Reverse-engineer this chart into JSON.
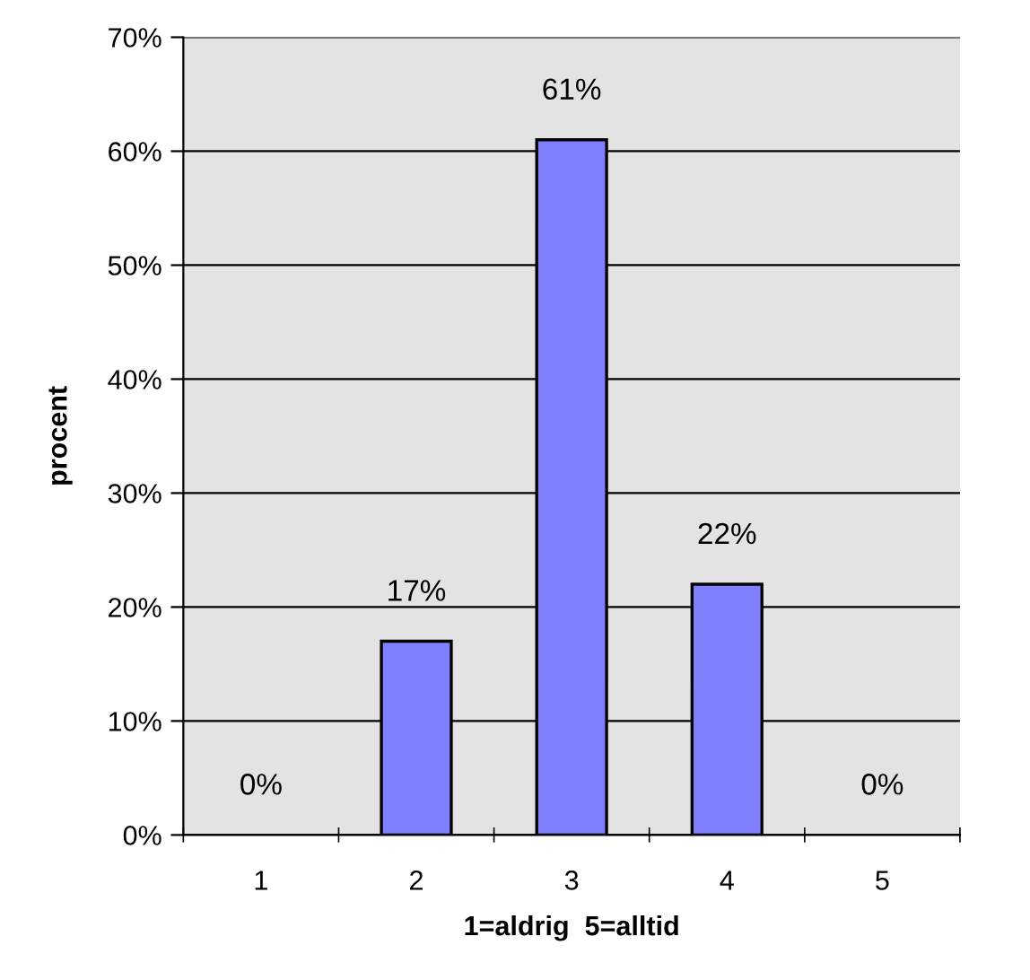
{
  "chart_data": {
    "type": "bar",
    "xlabel": "1=aldrig  5=alltid",
    "ylabel": "procent",
    "categories": [
      "1",
      "2",
      "3",
      "4",
      "5"
    ],
    "values": [
      0,
      17,
      61,
      22,
      0
    ],
    "value_labels": [
      "0%",
      "17%",
      "61%",
      "22%",
      "0%"
    ],
    "color": "#8080ff",
    "ylim": [
      0,
      70
    ],
    "yticks": [
      {
        "value": 0,
        "label": "0%"
      },
      {
        "value": 10,
        "label": "10%"
      },
      {
        "value": 20,
        "label": "20%"
      },
      {
        "value": 30,
        "label": "30%"
      },
      {
        "value": 40,
        "label": "40%"
      },
      {
        "value": 50,
        "label": "50%"
      },
      {
        "value": 60,
        "label": "60%"
      },
      {
        "value": 70,
        "label": "70%"
      }
    ],
    "grid": "y"
  }
}
